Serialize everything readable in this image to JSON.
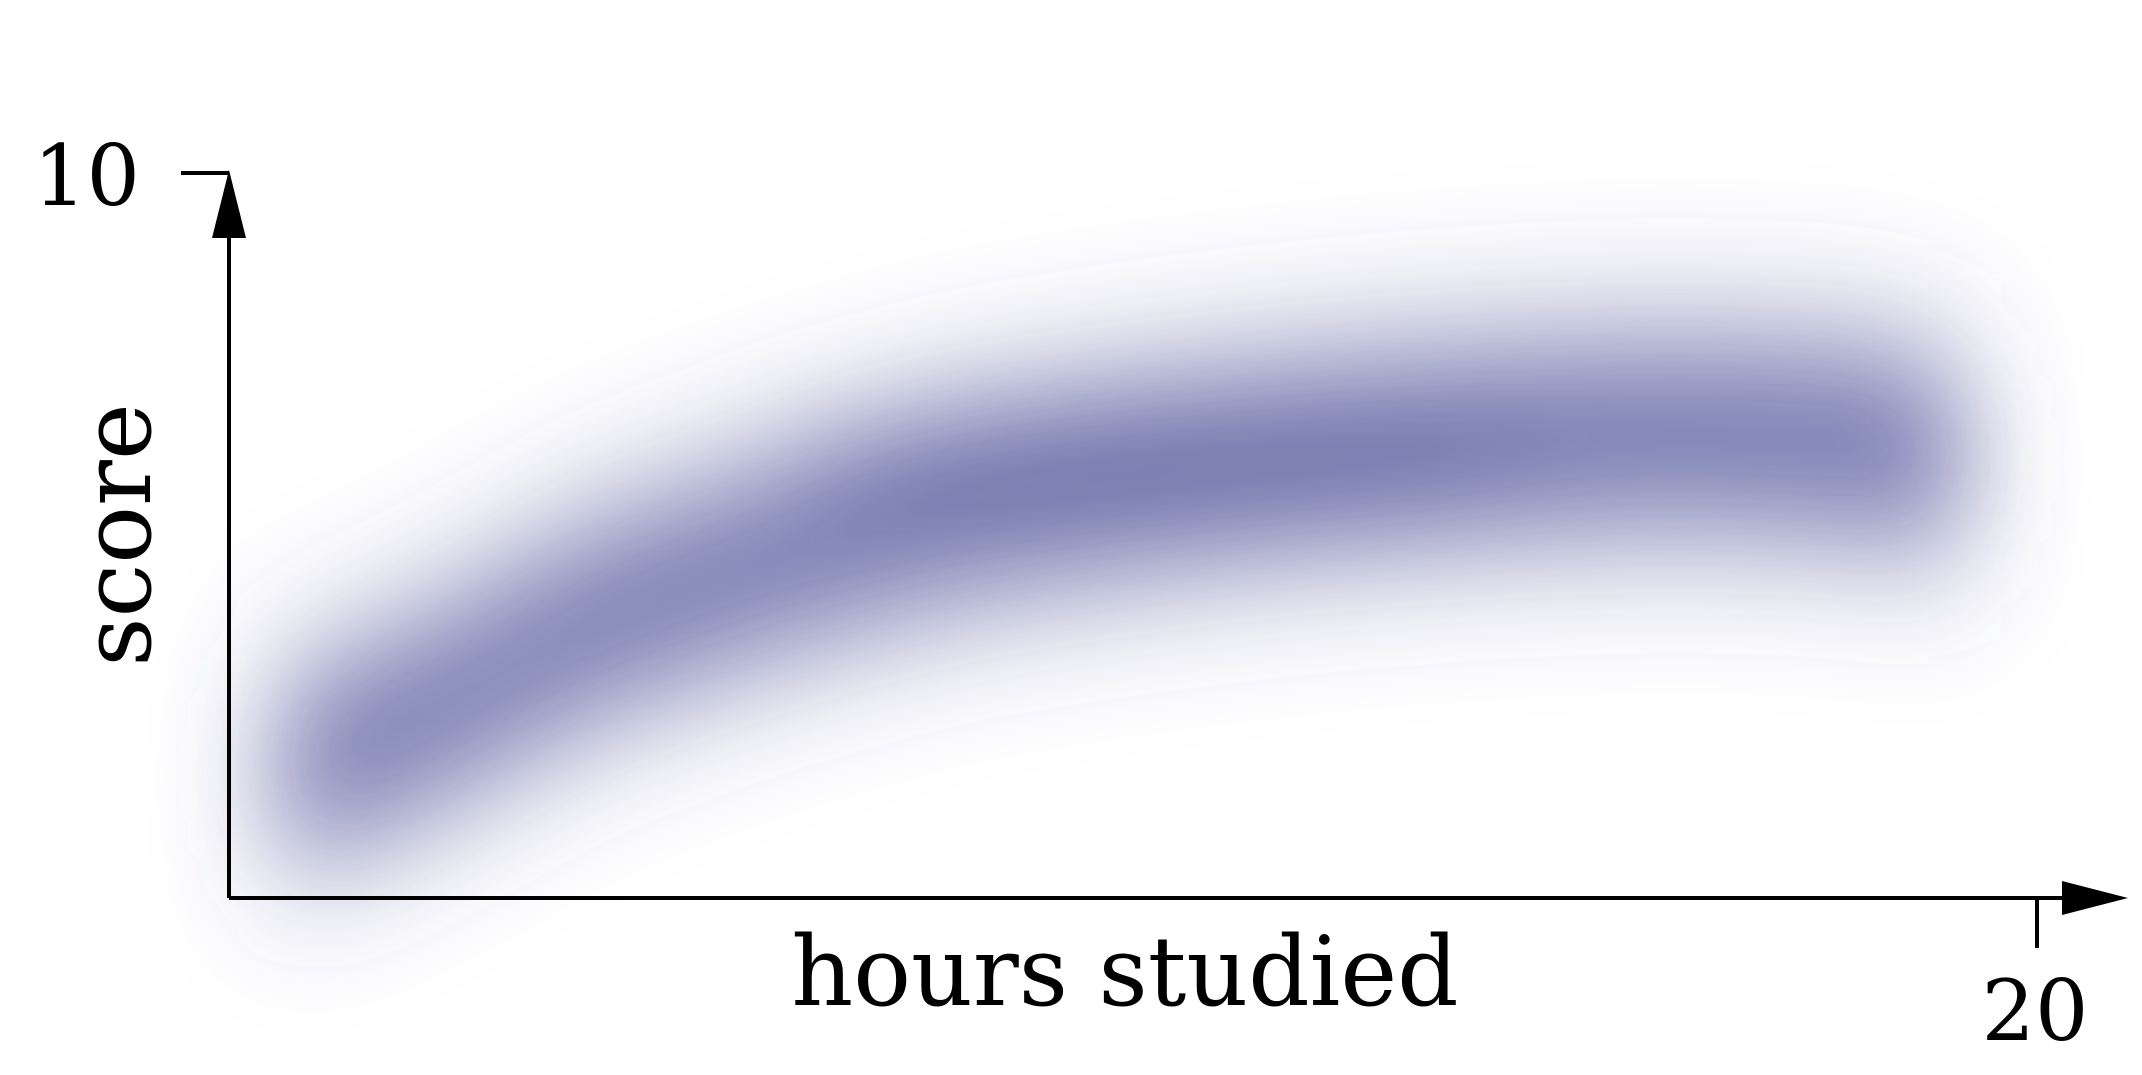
{
  "chart_data": {
    "type": "heatmap",
    "title": "",
    "xlabel": "hours studied",
    "ylabel": "score",
    "xlim": [
      0,
      20
    ],
    "ylim": [
      0,
      10
    ],
    "x_tick_labels": [
      "20"
    ],
    "y_tick_labels": [
      "10"
    ],
    "grid": false,
    "legend": "none",
    "density_trend": {
      "x": [
        0.5,
        2,
        4,
        6,
        8,
        10,
        12,
        14,
        16,
        18,
        19.2
      ],
      "y": [
        1.6,
        2.4,
        3.8,
        4.7,
        5.4,
        5.8,
        6.1,
        6.3,
        6.4,
        6.3,
        6.0
      ],
      "peak_x": 10.5,
      "peak_y": 6.0
    },
    "color": "#4a4e96"
  }
}
